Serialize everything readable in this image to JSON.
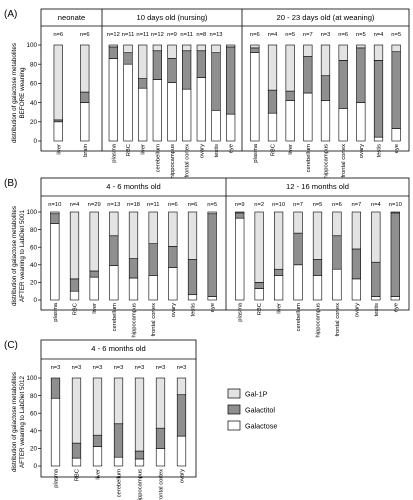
{
  "colors": {
    "gal1p": "#e3e3e3",
    "galactitol": "#8f8f8f",
    "galactose": "#ffffff",
    "stroke": "#000000"
  },
  "legend": {
    "gal1p": "Gal-1P",
    "galactitol": "Galactitol",
    "galactose": "Galactose"
  },
  "chart_data": [
    {
      "type": "bar",
      "panel": "(A)",
      "ylabel": "distribution of galactose metabolites BEFORE weaning",
      "ylim": [
        0,
        100
      ],
      "yticks": [
        0,
        20,
        40,
        60,
        80,
        100
      ],
      "stacked": true,
      "groups": [
        {
          "title": "neonate",
          "categories": [
            "liver",
            "brain"
          ],
          "n": [
            "n=6",
            "n=6"
          ],
          "series": [
            {
              "name": "Galactose",
              "values": [
                20,
                40
              ]
            },
            {
              "name": "Galactitol",
              "values": [
                2,
                11
              ]
            },
            {
              "name": "Gal-1P",
              "values": [
                78,
                49
              ]
            }
          ]
        },
        {
          "title": "10 days old (nursing)",
          "categories": [
            "plasma",
            "RBC",
            "liver",
            "cerebellum",
            "hippocampus",
            "frontal cortex",
            "ovary",
            "testis",
            "eye"
          ],
          "n": [
            "n=12",
            "n=11",
            "n=11",
            "n=12",
            "n=9",
            "n=11",
            "n=8",
            "n=13",
            ""
          ],
          "series": [
            {
              "name": "Galactose",
              "values": [
                86,
                80,
                55,
                64,
                61,
                54,
                66,
                32,
                28
              ]
            },
            {
              "name": "Galactitol",
              "values": [
                12,
                12,
                10,
                30,
                25,
                40,
                28,
                60,
                70
              ]
            },
            {
              "name": "Gal-1P",
              "values": [
                2,
                8,
                35,
                6,
                14,
                6,
                6,
                8,
                2
              ]
            }
          ]
        },
        {
          "title": "20 - 23 days old (at weaning)",
          "categories": [
            "plasma",
            "RBC",
            "liver",
            "cerebellum",
            "hippocampus",
            "frontal cortex",
            "ovary",
            "testis",
            "eye"
          ],
          "n": [
            "n=6",
            "n=4",
            "n=5",
            "n=7",
            "n=3",
            "n=6",
            "n=5",
            "n=4",
            "n=5"
          ],
          "series": [
            {
              "name": "Galactose",
              "values": [
                92,
                29,
                42,
                50,
                42,
                34,
                40,
                4,
                13
              ]
            },
            {
              "name": "Galactitol",
              "values": [
                5,
                24,
                10,
                38,
                26,
                50,
                57,
                80,
                80
              ]
            },
            {
              "name": "Gal-1P",
              "values": [
                3,
                47,
                48,
                12,
                32,
                16,
                3,
                16,
                7
              ]
            }
          ]
        }
      ]
    },
    {
      "type": "bar",
      "panel": "(B)",
      "ylabel": "distribution of galactose metabolites AFTER weaning to LabDiet 5001",
      "ylim": [
        0,
        100
      ],
      "yticks": [
        0,
        20,
        40,
        60,
        80,
        100
      ],
      "stacked": true,
      "groups": [
        {
          "title": "4 - 6 months old",
          "categories": [
            "plasma",
            "RBC",
            "liver",
            "cerebellum",
            "hippocampus",
            "frontal cortex",
            "ovary",
            "testis",
            "eye"
          ],
          "n": [
            "n=10",
            "n=4",
            "n=29",
            "n=13",
            "n=18",
            "n=11",
            "n=6",
            "n=6",
            "n=5"
          ],
          "series": [
            {
              "name": "Galactose",
              "values": [
                87,
                10,
                26,
                39,
                25,
                28,
                37,
                6,
                4
              ]
            },
            {
              "name": "Galactitol",
              "values": [
                11,
                14,
                7,
                34,
                22,
                36,
                24,
                40,
                94
              ]
            },
            {
              "name": "Gal-1P",
              "values": [
                2,
                76,
                67,
                27,
                53,
                36,
                39,
                54,
                2
              ]
            }
          ]
        },
        {
          "title": "12 - 16 months old",
          "categories": [
            "plasma",
            "RBC",
            "liver",
            "cerebellum",
            "hippocampus",
            "frontal cortex",
            "ovary",
            "testis",
            "eye"
          ],
          "n": [
            "n=9",
            "n=2",
            "n=10",
            "n=7",
            "n=5",
            "n=6",
            "n=7",
            "n=4",
            "n=10"
          ],
          "series": [
            {
              "name": "Galactose",
              "values": [
                93,
                13,
                28,
                40,
                28,
                35,
                24,
                4,
                4
              ]
            },
            {
              "name": "Galactitol",
              "values": [
                6,
                7,
                7,
                36,
                18,
                38,
                34,
                39,
                95
              ]
            },
            {
              "name": "Gal-1P",
              "values": [
                1,
                80,
                65,
                24,
                54,
                27,
                42,
                57,
                1
              ]
            }
          ]
        }
      ]
    },
    {
      "type": "bar",
      "panel": "(C)",
      "ylabel": "distribution of galactose metabolites AFTER weaning to LabDiet 5012",
      "ylim": [
        0,
        100
      ],
      "yticks": [
        0,
        20,
        40,
        60,
        80,
        100
      ],
      "stacked": true,
      "groups": [
        {
          "title": "4 - 6 months old",
          "categories": [
            "plasma",
            "RBC",
            "liver",
            "cerebellum",
            "hippocampus",
            "frontal cortex",
            "ovary"
          ],
          "n": [
            "n=3",
            "n=3",
            "n=3",
            "n=3",
            "n=3",
            "n=3",
            "n=3"
          ],
          "series": [
            {
              "name": "Galactose",
              "values": [
                77,
                9,
                22,
                10,
                8,
                20,
                34
              ]
            },
            {
              "name": "Galactitol",
              "values": [
                23,
                17,
                13,
                38,
                9,
                23,
                47
              ]
            },
            {
              "name": "Gal-1P",
              "values": [
                0,
                74,
                65,
                52,
                83,
                57,
                19
              ]
            }
          ]
        }
      ]
    }
  ]
}
